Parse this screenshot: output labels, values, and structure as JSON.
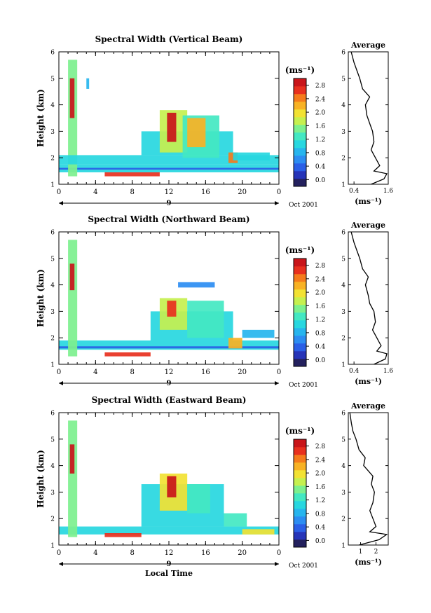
{
  "chart_data": [
    {
      "type": "heatmap",
      "title": "Spectral Width (Vertical Beam)",
      "xlabel": "",
      "ylabel": "Height (km)",
      "x_ticks": [
        "0",
        "4",
        "8",
        "12",
        "16",
        "20",
        "0"
      ],
      "y_ticks": [
        "1",
        "2",
        "3",
        "4",
        "5",
        "6"
      ],
      "xlim": [
        0,
        24
      ],
      "ylim": [
        1,
        6
      ],
      "day_label": "9",
      "date_label": "Oct 2001",
      "colorbar": {
        "unit": "(ms⁻¹)",
        "ticks": [
          "0.0",
          "0.4",
          "0.8",
          "1.2",
          "1.6",
          "2.0",
          "2.4",
          "2.8"
        ],
        "range": [
          -0.2,
          3.0
        ]
      },
      "regions": [
        {
          "x": [
            0.0,
            24.0
          ],
          "y": [
            1.45,
            1.75
          ],
          "v": 1.0
        },
        {
          "x": [
            0.0,
            24.0
          ],
          "y": [
            1.55,
            1.62
          ],
          "v": 0.3
        },
        {
          "x": [
            1.0,
            2.0
          ],
          "y": [
            1.3,
            5.7
          ],
          "v": 1.6
        },
        {
          "x": [
            1.2,
            1.7
          ],
          "y": [
            3.5,
            5.0
          ],
          "v": 2.8
        },
        {
          "x": [
            0.0,
            24.0
          ],
          "y": [
            1.75,
            2.1
          ],
          "v": 1.0
        },
        {
          "x": [
            5.0,
            11.0
          ],
          "y": [
            1.3,
            1.45
          ],
          "v": 2.6
        },
        {
          "x": [
            9.0,
            19.0
          ],
          "y": [
            2.1,
            3.0
          ],
          "v": 1.1
        },
        {
          "x": [
            11.0,
            14.0
          ],
          "y": [
            2.2,
            3.8
          ],
          "v": 1.8
        },
        {
          "x": [
            11.8,
            12.8
          ],
          "y": [
            2.6,
            3.7
          ],
          "v": 2.8
        },
        {
          "x": [
            13.5,
            17.5
          ],
          "y": [
            2.0,
            3.6
          ],
          "v": 1.3
        },
        {
          "x": [
            14.0,
            16.0
          ],
          "y": [
            2.4,
            3.5
          ],
          "v": 2.2
        },
        {
          "x": [
            18.5,
            19.5
          ],
          "y": [
            1.8,
            2.2
          ],
          "v": 2.4
        },
        {
          "x": [
            19.0,
            23.0
          ],
          "y": [
            1.9,
            2.2
          ],
          "v": 1.0
        },
        {
          "x": [
            3.0,
            3.3
          ],
          "y": [
            4.6,
            5.0
          ],
          "v": 0.8
        }
      ],
      "average_profile": {
        "title": "Average",
        "xlabel": "(ms⁻¹)",
        "x_ticks": [
          "0.4",
          "1.6"
        ],
        "y_ticks": [
          "1",
          "2",
          "3",
          "4",
          "5",
          "6"
        ],
        "xlim": [
          0.2,
          1.6
        ],
        "height": [
          1.0,
          1.2,
          1.4,
          1.5,
          1.7,
          2.0,
          2.3,
          2.6,
          3.0,
          3.3,
          3.6,
          4.0,
          4.3,
          4.6,
          5.0,
          5.3,
          5.6,
          6.0
        ],
        "width": [
          1.0,
          1.45,
          1.55,
          1.1,
          1.3,
          1.15,
          1.0,
          1.1,
          1.05,
          0.95,
          0.85,
          0.8,
          0.95,
          0.7,
          0.6,
          0.5,
          0.4,
          0.3
        ]
      }
    },
    {
      "type": "heatmap",
      "title": "Spectral Width (Northward Beam)",
      "xlabel": "",
      "ylabel": "Height (km)",
      "x_ticks": [
        "0",
        "4",
        "8",
        "12",
        "16",
        "20",
        "0"
      ],
      "y_ticks": [
        "1",
        "2",
        "3",
        "4",
        "5",
        "6"
      ],
      "xlim": [
        0,
        24
      ],
      "ylim": [
        1,
        6
      ],
      "day_label": "9",
      "date_label": "Oct 2001",
      "colorbar": {
        "unit": "(ms⁻¹)",
        "ticks": [
          "0.0",
          "0.4",
          "0.8",
          "1.2",
          "1.6",
          "2.0",
          "2.4",
          "2.8"
        ],
        "range": [
          -0.2,
          3.0
        ]
      },
      "regions": [
        {
          "x": [
            0.0,
            24.0
          ],
          "y": [
            1.55,
            1.9
          ],
          "v": 1.0
        },
        {
          "x": [
            0.0,
            24.0
          ],
          "y": [
            1.6,
            1.68
          ],
          "v": 0.3
        },
        {
          "x": [
            1.0,
            2.0
          ],
          "y": [
            1.3,
            5.7
          ],
          "v": 1.6
        },
        {
          "x": [
            1.2,
            1.7
          ],
          "y": [
            3.8,
            4.8
          ],
          "v": 2.8
        },
        {
          "x": [
            5.0,
            10.0
          ],
          "y": [
            1.3,
            1.45
          ],
          "v": 2.6
        },
        {
          "x": [
            10.0,
            19.0
          ],
          "y": [
            1.9,
            3.0
          ],
          "v": 1.1
        },
        {
          "x": [
            11.0,
            14.0
          ],
          "y": [
            2.3,
            3.5
          ],
          "v": 1.8
        },
        {
          "x": [
            11.8,
            12.8
          ],
          "y": [
            2.8,
            3.4
          ],
          "v": 2.6
        },
        {
          "x": [
            14.0,
            18.0
          ],
          "y": [
            2.0,
            3.4
          ],
          "v": 1.2
        },
        {
          "x": [
            13.0,
            17.0
          ],
          "y": [
            3.9,
            4.1
          ],
          "v": 0.6
        },
        {
          "x": [
            18.5,
            20.0
          ],
          "y": [
            1.6,
            2.0
          ],
          "v": 2.2
        },
        {
          "x": [
            20.0,
            23.5
          ],
          "y": [
            2.0,
            2.3
          ],
          "v": 0.9
        }
      ],
      "average_profile": {
        "title": "Average",
        "xlabel": "(ms⁻¹)",
        "x_ticks": [
          "0.4",
          "1.6"
        ],
        "y_ticks": [
          "1",
          "2",
          "3",
          "4",
          "5",
          "6"
        ],
        "xlim": [
          0.2,
          1.6
        ],
        "height": [
          1.0,
          1.2,
          1.4,
          1.5,
          1.7,
          2.0,
          2.3,
          2.6,
          3.0,
          3.3,
          3.6,
          4.0,
          4.3,
          4.6,
          5.0,
          5.3,
          5.6,
          6.0
        ],
        "width": [
          1.1,
          1.5,
          1.55,
          1.2,
          1.35,
          1.2,
          1.05,
          1.15,
          1.1,
          0.95,
          0.9,
          0.8,
          0.9,
          0.7,
          0.6,
          0.5,
          0.4,
          0.3
        ]
      }
    },
    {
      "type": "heatmap",
      "title": "Spectral Width (Eastward Beam)",
      "xlabel": "Local Time",
      "ylabel": "Height (km)",
      "x_ticks": [
        "0",
        "4",
        "8",
        "12",
        "16",
        "20",
        "0"
      ],
      "y_ticks": [
        "1",
        "2",
        "3",
        "4",
        "5",
        "6"
      ],
      "xlim": [
        0,
        24
      ],
      "ylim": [
        1,
        6
      ],
      "day_label": "9",
      "date_label": "Oct 2001",
      "colorbar": {
        "unit": "(ms⁻¹)",
        "ticks": [
          "0.0",
          "0.4",
          "0.8",
          "1.2",
          "1.6",
          "2.0",
          "2.4",
          "2.8"
        ],
        "range": [
          -0.2,
          3.0
        ]
      },
      "regions": [
        {
          "x": [
            0.0,
            24.0
          ],
          "y": [
            1.4,
            1.7
          ],
          "v": 1.0
        },
        {
          "x": [
            1.0,
            2.0
          ],
          "y": [
            1.3,
            5.7
          ],
          "v": 1.6
        },
        {
          "x": [
            1.2,
            1.7
          ],
          "y": [
            3.7,
            4.8
          ],
          "v": 2.8
        },
        {
          "x": [
            5.0,
            9.0
          ],
          "y": [
            1.3,
            1.45
          ],
          "v": 2.6
        },
        {
          "x": [
            9.0,
            18.0
          ],
          "y": [
            1.7,
            3.3
          ],
          "v": 1.1
        },
        {
          "x": [
            11.0,
            14.0
          ],
          "y": [
            2.3,
            3.7
          ],
          "v": 1.9
        },
        {
          "x": [
            11.8,
            12.8
          ],
          "y": [
            2.8,
            3.6
          ],
          "v": 2.8
        },
        {
          "x": [
            14.0,
            16.5
          ],
          "y": [
            2.2,
            3.3
          ],
          "v": 1.4
        },
        {
          "x": [
            18.0,
            20.5
          ],
          "y": [
            1.7,
            2.2
          ],
          "v": 1.2
        },
        {
          "x": [
            20.0,
            23.5
          ],
          "y": [
            1.4,
            1.6
          ],
          "v": 2.0
        }
      ],
      "average_profile": {
        "title": "Average",
        "xlabel": "(ms⁻¹)",
        "x_ticks": [
          "1",
          "2"
        ],
        "y_ticks": [
          "1",
          "2",
          "3",
          "4",
          "5",
          "6"
        ],
        "xlim": [
          0.2,
          2.8
        ],
        "height": [
          1.0,
          1.2,
          1.4,
          1.5,
          1.7,
          2.0,
          2.3,
          2.6,
          3.0,
          3.3,
          3.6,
          4.0,
          4.3,
          4.6,
          5.0,
          5.3,
          5.6,
          6.0
        ],
        "width": [
          0.9,
          2.2,
          2.7,
          1.6,
          2.0,
          1.8,
          1.6,
          1.8,
          1.9,
          1.7,
          1.8,
          1.2,
          1.3,
          0.9,
          0.7,
          0.5,
          0.4,
          0.3
        ]
      }
    }
  ]
}
